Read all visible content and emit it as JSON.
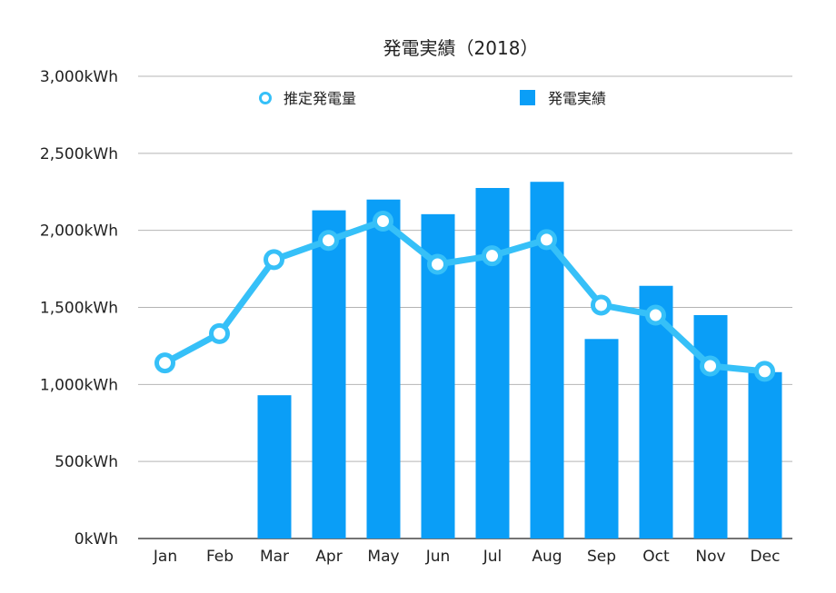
{
  "chart_data": {
    "type": "bar",
    "title": "発電実績（2018）",
    "categories": [
      "Jan",
      "Feb",
      "Mar",
      "Apr",
      "May",
      "Jun",
      "Jul",
      "Aug",
      "Sep",
      "Oct",
      "Nov",
      "Dec"
    ],
    "y_tick_labels": [
      "0kWh",
      "500kWh",
      "1,000kWh",
      "1,500kWh",
      "2,000kWh",
      "2,500kWh",
      "3,000kWh"
    ],
    "ylim": [
      0,
      3000
    ],
    "grid": true,
    "legend_placement": "top",
    "series": [
      {
        "name": "推定発電量",
        "kind": "line",
        "color": "#36c0f8",
        "values": [
          1140,
          1330,
          1810,
          1935,
          2060,
          1780,
          1835,
          1940,
          1515,
          1450,
          1120,
          1085
        ]
      },
      {
        "name": "発電実績",
        "kind": "bar",
        "color": "#0a9ef7",
        "values": [
          0,
          0,
          930,
          2130,
          2200,
          2105,
          2275,
          2315,
          1295,
          1640,
          1450,
          1080
        ]
      }
    ]
  }
}
